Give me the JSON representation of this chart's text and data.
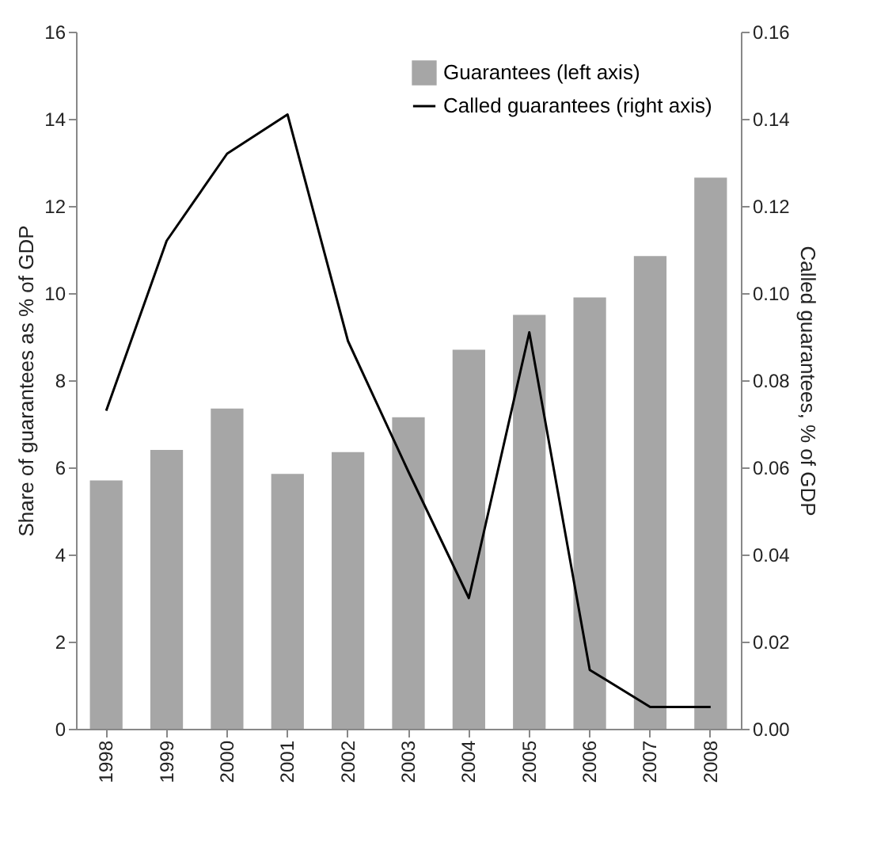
{
  "chart_data": {
    "type": "bar",
    "categories": [
      "1998",
      "1999",
      "2000",
      "2001",
      "2002",
      "2003",
      "2004",
      "2005",
      "2006",
      "2007",
      "2008"
    ],
    "ylabel": "Share of guarantees as % of GDP",
    "y2label": "Called guarantees, % of GDP",
    "ylim": [
      0,
      16
    ],
    "yticks": [
      0,
      2,
      4,
      6,
      8,
      10,
      12,
      14,
      16
    ],
    "y2lim": [
      0,
      0.16
    ],
    "y2ticks": [
      {
        "value": 0,
        "label": "0.00"
      },
      {
        "value": 0.02,
        "label": "0.02"
      },
      {
        "value": 0.04,
        "label": "0.04"
      },
      {
        "value": 0.06,
        "label": "0.06"
      },
      {
        "value": 0.08,
        "label": "0.08"
      },
      {
        "value": 0.1,
        "label": "0.10"
      },
      {
        "value": 0.12,
        "label": "0.12"
      },
      {
        "value": 0.14,
        "label": "0.14"
      },
      {
        "value": 0.16,
        "label": "0.16"
      }
    ],
    "legend": "top right",
    "series": [
      {
        "name": "Guarantees (left axis)",
        "color": "#a6a6a6",
        "values": [
          5.7,
          6.4,
          7.35,
          5.85,
          6.35,
          7.15,
          8.7,
          9.5,
          9.9,
          10.85,
          12.65
        ]
      },
      {
        "name": "Called guarantees (right axis)",
        "type": "line",
        "axis": "y2",
        "color": "#000000",
        "values": [
          0.073,
          0.112,
          0.132,
          0.141,
          0.089,
          0.059,
          0.03,
          0.091,
          0.0135,
          0.005,
          0.005
        ]
      }
    ]
  }
}
